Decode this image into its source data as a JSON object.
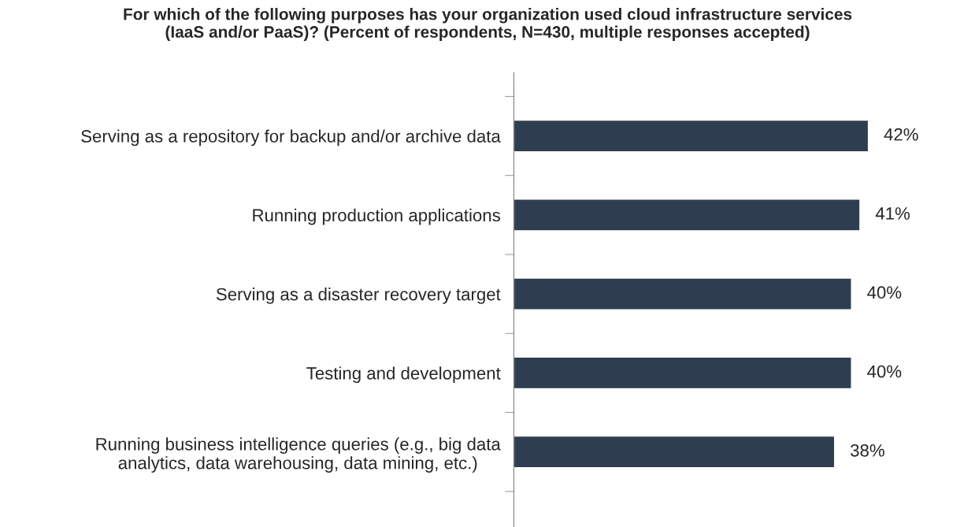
{
  "chart_data": {
    "type": "bar",
    "orientation": "horizontal",
    "title": "For which of the following purposes has your organization used cloud infrastructure services\n(IaaS and/or PaaS)? (Percent of respondents, N=430, multiple responses accepted)",
    "categories": [
      "Serving as a repository for backup and/or archive data",
      "Running production applications",
      "Serving as a disaster recovery target",
      "Testing and development",
      "Running business intelligence queries (e.g., big data\nanalytics, data warehousing, data mining, etc.)"
    ],
    "values": [
      42,
      41,
      40,
      40,
      38
    ],
    "value_labels": [
      "42%",
      "41%",
      "40%",
      "40%",
      "38%"
    ],
    "color": "#2e3e50",
    "tick_labels": "y",
    "grid": false,
    "legend": false
  }
}
